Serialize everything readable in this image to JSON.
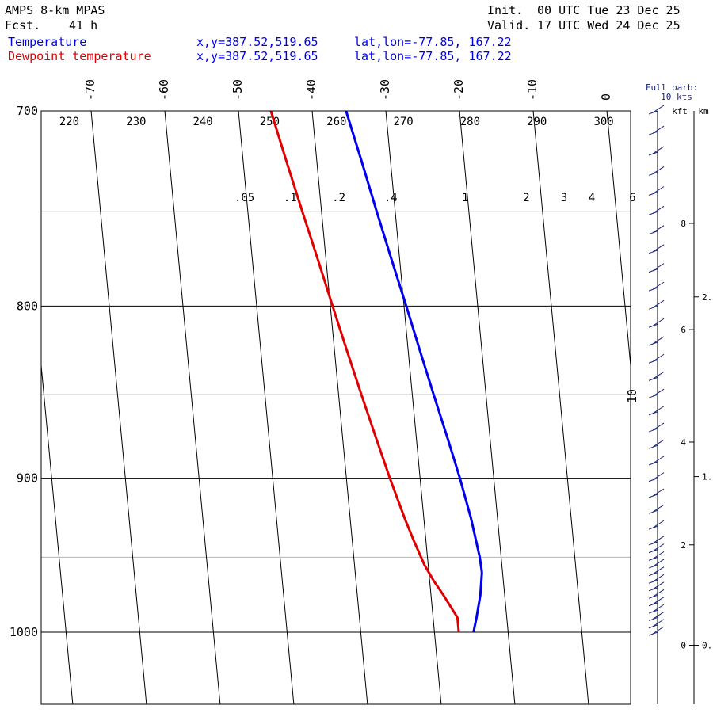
{
  "header": {
    "model": "AMPS 8-km MPAS",
    "fcst_label": "Fcst.",
    "fcst_value": "41 h",
    "init_label": "Init.",
    "init_value": "00 UTC Tue 23 Dec 25",
    "valid_label": "Valid.",
    "valid_value": "17 UTC Wed 24 Dec 25"
  },
  "legend": [
    {
      "name": "Temperature",
      "xy": "x,y=387.52,519.65",
      "latlon": "lat,lon=-77.85, 167.22",
      "color": "#0000ee"
    },
    {
      "name": "Dewpoint temperature",
      "xy": "x,y=387.52,519.65",
      "latlon": "lat,lon=-77.85, 167.22",
      "color": "#e00000"
    }
  ],
  "barb_legend": {
    "line1": "Full barb:",
    "line2": "10 kts"
  },
  "height_axis": {
    "kft_label": "kft",
    "km_label": "km",
    "kft_ticks": [
      {
        "value": 0,
        "label": "0",
        "p": 1009
      },
      {
        "value": 2,
        "label": "2",
        "p": 942
      },
      {
        "value": 4,
        "label": "4",
        "p": 878
      },
      {
        "value": 6,
        "label": "6",
        "p": 813
      },
      {
        "value": 8,
        "label": "8",
        "p": 756
      }
    ],
    "km_ticks": [
      {
        "value": 0,
        "label": "0.",
        "p": 1009
      },
      {
        "value": 1,
        "label": "1.",
        "p": 899
      },
      {
        "value": 2,
        "label": "2.",
        "p": 795
      }
    ]
  },
  "chart_data": {
    "type": "line",
    "diagram": "skew-T log-p",
    "ylim_hPa": [
      1040,
      700
    ],
    "pressure_ticks": [
      {
        "value": 700,
        "label": "700"
      },
      {
        "value": 800,
        "label": "800"
      },
      {
        "value": 900,
        "label": "900"
      },
      {
        "value": 1000,
        "label": "1000"
      }
    ],
    "pressure_minor": [
      750,
      850,
      950
    ],
    "isotherm_ticks": [
      {
        "value": -70,
        "label": "-70"
      },
      {
        "value": -60,
        "label": "-60"
      },
      {
        "value": -50,
        "label": "-50"
      },
      {
        "value": -40,
        "label": "-40"
      },
      {
        "value": -30,
        "label": "-30"
      },
      {
        "value": -20,
        "label": "-20"
      },
      {
        "value": -10,
        "label": "-10"
      },
      {
        "value": 0,
        "label": "0"
      },
      {
        "value": 10,
        "label": "10"
      }
    ],
    "isotherms_C": [
      -120,
      -110,
      -100,
      -90,
      -80,
      -70,
      -60,
      -50,
      -40,
      -30,
      -20,
      -10,
      0,
      10,
      20
    ],
    "dry_adiabats_K": [
      {
        "value": 220,
        "label": "220"
      },
      {
        "value": 230,
        "label": "230"
      },
      {
        "value": 240,
        "label": "240"
      },
      {
        "value": 250,
        "label": "250"
      },
      {
        "value": 260,
        "label": "260"
      },
      {
        "value": 270,
        "label": "270"
      },
      {
        "value": 280,
        "label": "280"
      },
      {
        "value": 290,
        "label": "290"
      },
      {
        "value": 300,
        "label": "300"
      }
    ],
    "mixing_ratio_gkg": [
      {
        "value": 0.05,
        "label": ".05"
      },
      {
        "value": 0.1,
        "label": ".1"
      },
      {
        "value": 0.2,
        "label": ".2"
      },
      {
        "value": 0.4,
        "label": ".4"
      },
      {
        "value": 1,
        "label": "1"
      },
      {
        "value": 2,
        "label": "2"
      },
      {
        "value": 3,
        "label": "3"
      },
      {
        "value": 4,
        "label": "4"
      },
      {
        "value": 6,
        "label": "6"
      }
    ],
    "series": [
      {
        "name": "Temperature",
        "color": "#0000ee",
        "points": [
          {
            "p": 1000,
            "t": -24.7
          },
          {
            "p": 990,
            "t": -24.1
          },
          {
            "p": 975,
            "t": -23.3
          },
          {
            "p": 960,
            "t": -22.8
          },
          {
            "p": 950,
            "t": -22.9
          },
          {
            "p": 925,
            "t": -23.6
          },
          {
            "p": 900,
            "t": -24.6
          },
          {
            "p": 875,
            "t": -25.8
          },
          {
            "p": 850,
            "t": -27.1
          },
          {
            "p": 825,
            "t": -28.4
          },
          {
            "p": 800,
            "t": -29.7
          },
          {
            "p": 775,
            "t": -31.1
          },
          {
            "p": 750,
            "t": -32.5
          },
          {
            "p": 725,
            "t": -33.9
          },
          {
            "p": 700,
            "t": -35.4
          }
        ]
      },
      {
        "name": "Dewpoint temperature",
        "color": "#e00000",
        "points": [
          {
            "p": 1000,
            "t": -26.7
          },
          {
            "p": 990,
            "t": -26.7
          },
          {
            "p": 975,
            "t": -28.3
          },
          {
            "p": 965,
            "t": -29.5
          },
          {
            "p": 955,
            "t": -30.5
          },
          {
            "p": 940,
            "t": -31.6
          },
          {
            "p": 925,
            "t": -32.6
          },
          {
            "p": 900,
            "t": -34.1
          },
          {
            "p": 875,
            "t": -35.5
          },
          {
            "p": 850,
            "t": -36.9
          },
          {
            "p": 825,
            "t": -38.3
          },
          {
            "p": 800,
            "t": -39.7
          },
          {
            "p": 775,
            "t": -41.1
          },
          {
            "p": 750,
            "t": -42.6
          },
          {
            "p": 725,
            "t": -44.1
          },
          {
            "p": 700,
            "t": -45.6
          }
        ]
      }
    ],
    "wind_barbs": [
      {
        "p": 1000,
        "speed_kt": 5
      },
      {
        "p": 995,
        "speed_kt": 5
      },
      {
        "p": 990,
        "speed_kt": 5
      },
      {
        "p": 985,
        "speed_kt": 5
      },
      {
        "p": 980,
        "speed_kt": 5
      },
      {
        "p": 975,
        "speed_kt": 5
      },
      {
        "p": 970,
        "speed_kt": 5
      },
      {
        "p": 965,
        "speed_kt": 5
      },
      {
        "p": 960,
        "speed_kt": 5
      },
      {
        "p": 955,
        "speed_kt": 5
      },
      {
        "p": 950,
        "speed_kt": 5
      },
      {
        "p": 945,
        "speed_kt": 5
      },
      {
        "p": 940,
        "speed_kt": 5
      },
      {
        "p": 930,
        "speed_kt": 5
      },
      {
        "p": 920,
        "speed_kt": 5
      },
      {
        "p": 910,
        "speed_kt": 5
      },
      {
        "p": 900,
        "speed_kt": 5
      },
      {
        "p": 890,
        "speed_kt": 5
      },
      {
        "p": 880,
        "speed_kt": 5
      },
      {
        "p": 870,
        "speed_kt": 5
      },
      {
        "p": 860,
        "speed_kt": 5
      },
      {
        "p": 850,
        "speed_kt": 5
      },
      {
        "p": 840,
        "speed_kt": 5
      },
      {
        "p": 830,
        "speed_kt": 5
      },
      {
        "p": 820,
        "speed_kt": 5
      },
      {
        "p": 810,
        "speed_kt": 5
      },
      {
        "p": 800,
        "speed_kt": 5
      },
      {
        "p": 790,
        "speed_kt": 5
      },
      {
        "p": 780,
        "speed_kt": 5
      },
      {
        "p": 770,
        "speed_kt": 5
      },
      {
        "p": 760,
        "speed_kt": 5
      },
      {
        "p": 750,
        "speed_kt": 5
      },
      {
        "p": 740,
        "speed_kt": 5
      },
      {
        "p": 730,
        "speed_kt": 5
      },
      {
        "p": 720,
        "speed_kt": 5
      },
      {
        "p": 710,
        "speed_kt": 5
      },
      {
        "p": 700,
        "speed_kt": 5
      }
    ],
    "grid": true
  },
  "colors": {
    "frame": "#000000",
    "minor_isobar": "#b4b4b4",
    "barb": "#1a237e"
  }
}
